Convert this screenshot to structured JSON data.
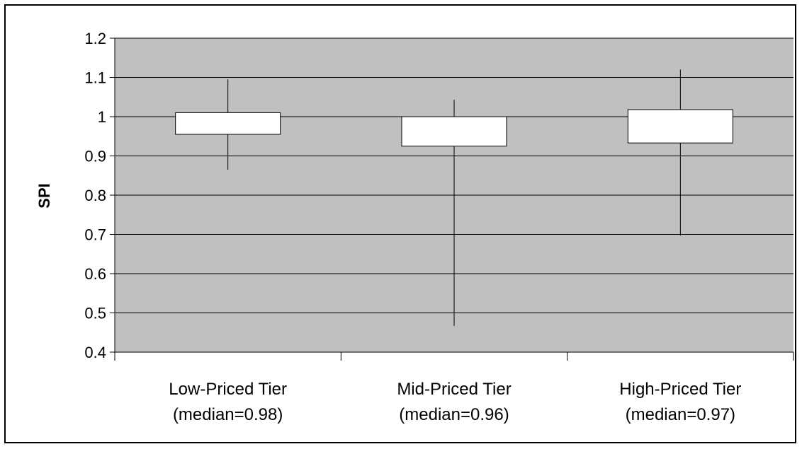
{
  "chart_data": {
    "type": "box",
    "ylabel": "SPI",
    "ylim": [
      0.4,
      1.2
    ],
    "yticks": [
      "0.4",
      "0.5",
      "0.6",
      "0.7",
      "0.8",
      "0.9",
      "1",
      "1.1",
      "1.2"
    ],
    "grid": true,
    "legend": "none",
    "categories": [
      {
        "label": "Low-Priced Tier",
        "sublabel": "(median=0.98)"
      },
      {
        "label": "Mid-Priced Tier",
        "sublabel": "(median=0.96)"
      },
      {
        "label": "High-Priced Tier",
        "sublabel": "(median=0.97)"
      }
    ],
    "boxes": [
      {
        "min": 0.865,
        "q1": 0.955,
        "q3": 1.01,
        "max": 1.095
      },
      {
        "min": 0.467,
        "q1": 0.925,
        "q3": 1.0,
        "max": 1.043
      },
      {
        "min": 0.697,
        "q1": 0.933,
        "q3": 1.018,
        "max": 1.12
      }
    ],
    "colors": {
      "plot_background": "#c0c0c0",
      "box_fill": "#ffffff",
      "line": "#000000"
    }
  }
}
